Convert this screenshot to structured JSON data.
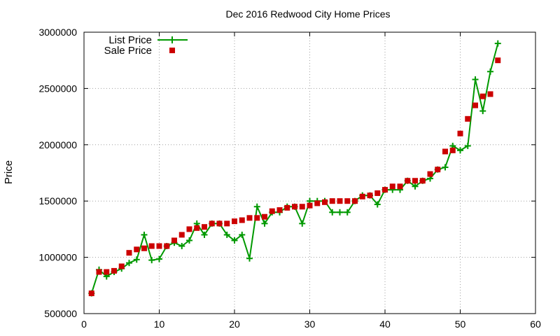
{
  "chart_data": {
    "type": "line",
    "title": "Dec 2016 Redwood City Home Prices",
    "xlabel": "",
    "ylabel": "Price",
    "xlim": [
      0,
      60
    ],
    "ylim": [
      500000,
      3000000
    ],
    "xticks": [
      0,
      10,
      20,
      30,
      40,
      50,
      60
    ],
    "yticks": [
      500000,
      1000000,
      1500000,
      2000000,
      2500000,
      3000000
    ],
    "grid": true,
    "legend_position": "top-left",
    "x": [
      1,
      2,
      3,
      4,
      5,
      6,
      7,
      8,
      9,
      10,
      11,
      12,
      13,
      14,
      15,
      16,
      17,
      18,
      19,
      20,
      21,
      22,
      23,
      24,
      25,
      26,
      27,
      28,
      29,
      30,
      31,
      32,
      33,
      34,
      35,
      36,
      37,
      38,
      39,
      40,
      41,
      42,
      43,
      44,
      45,
      46,
      47,
      48,
      49,
      50,
      51,
      52,
      53,
      54,
      55
    ],
    "series": [
      {
        "name": "List Price",
        "style": "linespoints",
        "color": "#009900",
        "marker": "plus",
        "values": [
          680000,
          890000,
          830000,
          870000,
          900000,
          950000,
          980000,
          1200000,
          975000,
          985000,
          1100000,
          1130000,
          1100000,
          1150000,
          1300000,
          1200000,
          1300000,
          1300000,
          1200000,
          1150000,
          1200000,
          990000,
          1450000,
          1300000,
          1400000,
          1400000,
          1450000,
          1450000,
          1300000,
          1500000,
          1500000,
          1500000,
          1400000,
          1400000,
          1400000,
          1500000,
          1550000,
          1550000,
          1470000,
          1600000,
          1600000,
          1600000,
          1680000,
          1630000,
          1680000,
          1700000,
          1780000,
          1800000,
          1990000,
          1950000,
          1990000,
          2580000,
          2300000,
          2650000,
          2900000
        ]
      },
      {
        "name": "Sale Price",
        "style": "points",
        "color": "#cc0000",
        "marker": "square",
        "values": [
          680000,
          870000,
          870000,
          880000,
          920000,
          1040000,
          1070000,
          1080000,
          1100000,
          1100000,
          1100000,
          1150000,
          1200000,
          1250000,
          1260000,
          1270000,
          1300000,
          1300000,
          1300000,
          1320000,
          1330000,
          1350000,
          1350000,
          1360000,
          1410000,
          1420000,
          1440000,
          1450000,
          1450000,
          1460000,
          1480000,
          1490000,
          1500000,
          1500000,
          1500000,
          1500000,
          1540000,
          1550000,
          1570000,
          1600000,
          1630000,
          1630000,
          1680000,
          1680000,
          1680000,
          1740000,
          1780000,
          1940000,
          1950000,
          2100000,
          2230000,
          2350000,
          2430000,
          2450000,
          2750000
        ]
      }
    ]
  }
}
